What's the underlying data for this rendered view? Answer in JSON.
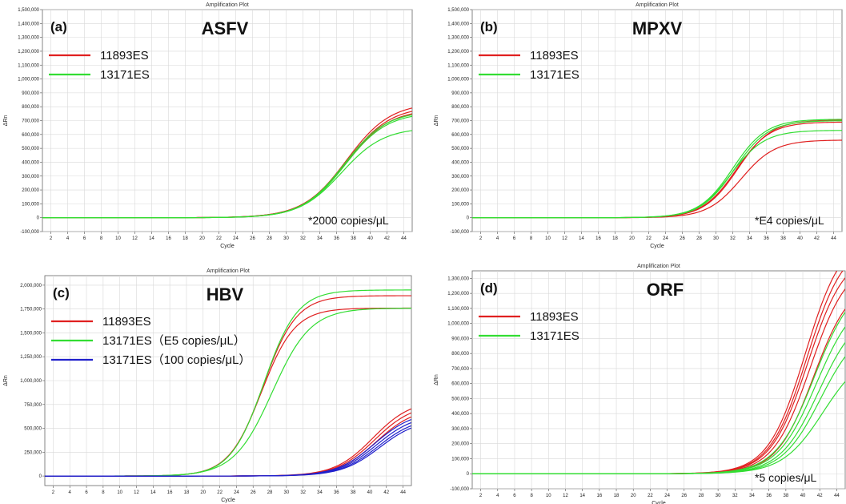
{
  "chart_data": [
    {
      "type": "line",
      "panel_label": "(a)",
      "plot_title": "Amplification Plot",
      "title": "ASFV",
      "xlabel": "Cycle",
      "ylabel": "ΔRn",
      "xlim": [
        1,
        45
      ],
      "ylim": [
        -100000,
        1500000
      ],
      "x_ticks": [
        "2",
        "4",
        "6",
        "8",
        "10",
        "12",
        "14",
        "16",
        "18",
        "20",
        "22",
        "24",
        "26",
        "28",
        "30",
        "32",
        "34",
        "36",
        "38",
        "40",
        "42",
        "44"
      ],
      "y_ticks": [
        "1,500,000",
        "1,400,000",
        "1,300,000",
        "1,200,000",
        "1,100,000",
        "1,000,000",
        "900,000",
        "800,000",
        "700,000",
        "600,000",
        "500,000",
        "400,000",
        "300,000",
        "200,000",
        "100,000",
        "0",
        "-100,000"
      ],
      "legend": [
        {
          "name": "11893ES",
          "color": "#e02020"
        },
        {
          "name": "13171ES",
          "color": "#33dd33"
        }
      ],
      "annotation": "*2000 copies/μL",
      "series": [
        {
          "name": "11893ES",
          "color": "#e02020",
          "plateau": 830000,
          "midpoint": 37.2,
          "slope": 2.6
        },
        {
          "name": "11893ES",
          "color": "#e02020",
          "plateau": 805000,
          "midpoint": 37.2,
          "slope": 2.6
        },
        {
          "name": "11893ES",
          "color": "#e02020",
          "plateau": 785000,
          "midpoint": 37.1,
          "slope": 2.6
        },
        {
          "name": "13171ES",
          "color": "#33dd33",
          "plateau": 770000,
          "midpoint": 36.9,
          "slope": 2.5
        },
        {
          "name": "13171ES",
          "color": "#33dd33",
          "plateau": 760000,
          "midpoint": 37.0,
          "slope": 2.5
        },
        {
          "name": "13171ES",
          "color": "#33dd33",
          "plateau": 650000,
          "midpoint": 36.6,
          "slope": 2.5
        }
      ]
    },
    {
      "type": "line",
      "panel_label": "(b)",
      "plot_title": "Amplification Plot",
      "title": "MPXV",
      "xlabel": "Cycle",
      "ylabel": "ΔRn",
      "xlim": [
        1,
        45
      ],
      "ylim": [
        -100000,
        1500000
      ],
      "x_ticks": [
        "2",
        "4",
        "6",
        "8",
        "10",
        "12",
        "14",
        "16",
        "18",
        "20",
        "22",
        "24",
        "26",
        "28",
        "30",
        "32",
        "34",
        "36",
        "38",
        "40",
        "42",
        "44"
      ],
      "y_ticks": [
        "1,500,000",
        "1,400,000",
        "1,300,000",
        "1,200,000",
        "1,100,000",
        "1,000,000",
        "900,000",
        "800,000",
        "700,000",
        "600,000",
        "500,000",
        "400,000",
        "300,000",
        "200,000",
        "100,000",
        "0",
        "-100,000"
      ],
      "legend": [
        {
          "name": "11893ES",
          "color": "#e02020"
        },
        {
          "name": "13171ES",
          "color": "#33dd33"
        }
      ],
      "annotation": "*E4 copies/μL",
      "series": [
        {
          "name": "11893ES",
          "color": "#e02020",
          "plateau": 705000,
          "midpoint": 32.6,
          "slope": 2.0
        },
        {
          "name": "11893ES",
          "color": "#e02020",
          "plateau": 690000,
          "midpoint": 32.4,
          "slope": 2.0
        },
        {
          "name": "11893ES",
          "color": "#e02020",
          "plateau": 560000,
          "midpoint": 33.0,
          "slope": 2.0
        },
        {
          "name": "13171ES",
          "color": "#33dd33",
          "plateau": 710000,
          "midpoint": 32.0,
          "slope": 2.0
        },
        {
          "name": "13171ES",
          "color": "#33dd33",
          "plateau": 700000,
          "midpoint": 32.2,
          "slope": 2.0
        },
        {
          "name": "13171ES",
          "color": "#33dd33",
          "plateau": 630000,
          "midpoint": 31.8,
          "slope": 2.0
        }
      ]
    },
    {
      "type": "line",
      "panel_label": "(c)",
      "plot_title": "Amplification Plot",
      "title": "HBV",
      "xlabel": "Cycle",
      "ylabel": "ΔRn",
      "xlim": [
        1,
        45
      ],
      "ylim": [
        -100000,
        2100000
      ],
      "x_ticks": [
        "2",
        "4",
        "6",
        "8",
        "10",
        "12",
        "14",
        "16",
        "18",
        "20",
        "22",
        "24",
        "26",
        "28",
        "30",
        "32",
        "34",
        "36",
        "38",
        "40",
        "42",
        "44"
      ],
      "y_ticks": [
        "2,000,000",
        "1,750,000",
        "1,500,000",
        "1,250,000",
        "1,000,000",
        "750,000",
        "500,000",
        "250,000",
        "0"
      ],
      "legend": [
        {
          "name": "11893ES",
          "color": "#e02020"
        },
        {
          "name": "13171ES（E5 copies/μL）",
          "color": "#33dd33"
        },
        {
          "name": "13171ES（100 copies/μL）",
          "color": "#2020cc"
        }
      ],
      "series": [
        {
          "name": "11893ES",
          "color": "#e02020",
          "plateau": 1890000,
          "midpoint": 27.2,
          "slope": 2.0
        },
        {
          "name": "11893ES",
          "color": "#e02020",
          "plateau": 1760000,
          "midpoint": 27.0,
          "slope": 2.0
        },
        {
          "name": "13171ES (E5)",
          "color": "#33dd33",
          "plateau": 1950000,
          "midpoint": 27.3,
          "slope": 2.0
        },
        {
          "name": "13171ES (E5)",
          "color": "#33dd33",
          "plateau": 1760000,
          "midpoint": 28.3,
          "slope": 2.3
        },
        {
          "name": "11893ES",
          "color": "#e02020",
          "plateau": 800000,
          "midpoint": 40.4,
          "slope": 2.3
        },
        {
          "name": "11893ES",
          "color": "#e02020",
          "plateau": 760000,
          "midpoint": 40.6,
          "slope": 2.3
        },
        {
          "name": "11893ES",
          "color": "#e02020",
          "plateau": 720000,
          "midpoint": 40.8,
          "slope": 2.3
        },
        {
          "name": "13171ES (100)",
          "color": "#2020cc",
          "plateau": 680000,
          "midpoint": 40.6,
          "slope": 2.3
        },
        {
          "name": "13171ES (100)",
          "color": "#2020cc",
          "plateau": 650000,
          "midpoint": 40.8,
          "slope": 2.3
        },
        {
          "name": "13171ES (100)",
          "color": "#2020cc",
          "plateau": 620000,
          "midpoint": 41.0,
          "slope": 2.3
        },
        {
          "name": "13171ES (100)",
          "color": "#2020cc",
          "plateau": 600000,
          "midpoint": 41.2,
          "slope": 2.3
        }
      ]
    },
    {
      "type": "line",
      "panel_label": "(d)",
      "plot_title": "Amplification Plot",
      "title": "ORF",
      "xlabel": "Cycle",
      "ylabel": "ΔRn",
      "xlim": [
        1,
        45
      ],
      "ylim": [
        -100000,
        1350000
      ],
      "x_ticks": [
        "2",
        "4",
        "6",
        "8",
        "10",
        "12",
        "14",
        "16",
        "18",
        "20",
        "22",
        "24",
        "26",
        "28",
        "30",
        "32",
        "34",
        "36",
        "38",
        "40",
        "42",
        "44"
      ],
      "y_ticks": [
        "1,300,000",
        "1,200,000",
        "1,100,000",
        "1,000,000",
        "900,000",
        "800,000",
        "700,000",
        "600,000",
        "500,000",
        "400,000",
        "300,000",
        "200,000",
        "100,000",
        "0",
        "-100,000"
      ],
      "legend": [
        {
          "name": "11893ES",
          "color": "#e02020"
        },
        {
          "name": "13171ES",
          "color": "#33dd33"
        }
      ],
      "annotation": "*5 copies/μL",
      "series": [
        {
          "name": "11893ES",
          "color": "#e02020",
          "plateau": 1600000,
          "midpoint": 40.3,
          "slope": 2.2
        },
        {
          "name": "11893ES",
          "color": "#e02020",
          "plateau": 1550000,
          "midpoint": 40.5,
          "slope": 2.2
        },
        {
          "name": "11893ES",
          "color": "#e02020",
          "plateau": 1480000,
          "midpoint": 40.6,
          "slope": 2.2
        },
        {
          "name": "11893ES",
          "color": "#e02020",
          "plateau": 1420000,
          "midpoint": 40.9,
          "slope": 2.2
        },
        {
          "name": "11893ES",
          "color": "#e02020",
          "plateau": 1300000,
          "midpoint": 41.3,
          "slope": 2.2
        },
        {
          "name": "13171ES",
          "color": "#33dd33",
          "plateau": 1300000,
          "midpoint": 41.4,
          "slope": 2.3
        },
        {
          "name": "13171ES",
          "color": "#33dd33",
          "plateau": 1200000,
          "midpoint": 41.6,
          "slope": 2.3
        },
        {
          "name": "13171ES",
          "color": "#33dd33",
          "plateau": 1100000,
          "midpoint": 41.9,
          "slope": 2.3
        },
        {
          "name": "13171ES",
          "color": "#33dd33",
          "plateau": 1000000,
          "midpoint": 42.1,
          "slope": 2.3
        },
        {
          "name": "13171ES",
          "color": "#33dd33",
          "plateau": 820000,
          "midpoint": 42.4,
          "slope": 2.4
        }
      ]
    }
  ]
}
